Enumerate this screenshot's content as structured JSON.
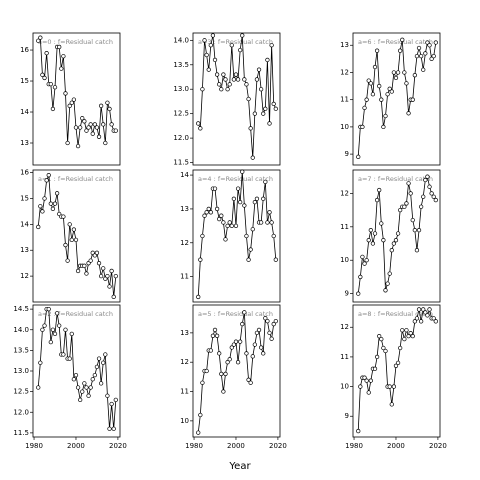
{
  "xlabel": "Year",
  "chart_data": [
    {
      "type": "line",
      "title": "a=0 : f=Residual catch",
      "color": "#000000",
      "x": [
        1982,
        1983,
        1984,
        1985,
        1986,
        1987,
        1988,
        1989,
        1990,
        1991,
        1992,
        1993,
        1994,
        1995,
        1996,
        1997,
        1998,
        1999,
        2000,
        2001,
        2002,
        2003,
        2004,
        2005,
        2006,
        2007,
        2008,
        2009,
        2010,
        2011,
        2012,
        2013,
        2014,
        2015,
        2016,
        2017,
        2018,
        2019
      ],
      "values": [
        16.3,
        16.4,
        15.2,
        15.1,
        15.9,
        14.9,
        14.9,
        14.1,
        14.8,
        16.1,
        16.1,
        15.4,
        15.8,
        14.6,
        13.0,
        14.2,
        14.3,
        14.4,
        13.5,
        12.9,
        13.5,
        13.8,
        13.7,
        13.4,
        13.5,
        13.6,
        13.3,
        13.6,
        13.5,
        13.2,
        14.2,
        13.6,
        13.0,
        14.3,
        14.1,
        13.6,
        13.4,
        13.4
      ],
      "xlim": [
        1979.5,
        2021
      ],
      "ylim": [
        12.29,
        16.55
      ],
      "yticks": [
        13,
        14,
        15,
        16
      ]
    },
    {
      "type": "line",
      "title": "a=1 : f=Residual catch",
      "color": "#000000",
      "x": [
        1982,
        1983,
        1984,
        1985,
        1986,
        1987,
        1988,
        1989,
        1990,
        1991,
        1992,
        1993,
        1994,
        1995,
        1996,
        1997,
        1998,
        1999,
        2000,
        2001,
        2002,
        2003,
        2004,
        2005,
        2006,
        2007,
        2008,
        2009,
        2010,
        2011,
        2012,
        2013,
        2014,
        2015,
        2016,
        2017,
        2018,
        2019
      ],
      "values": [
        13.9,
        14.7,
        14.5,
        15.0,
        15.7,
        15.9,
        14.8,
        14.6,
        14.8,
        15.2,
        14.4,
        14.3,
        14.3,
        13.2,
        12.6,
        14.0,
        13.4,
        13.8,
        13.4,
        12.2,
        12.4,
        12.4,
        12.4,
        12.1,
        12.5,
        12.6,
        12.9,
        12.8,
        12.9,
        12.5,
        12.0,
        12.3,
        11.9,
        12.0,
        11.6,
        12.2,
        11.2,
        12.0
      ],
      "xlim": [
        1979.5,
        2021
      ],
      "ylim": [
        11.0,
        16.1
      ],
      "yticks": [
        12,
        13,
        14,
        15,
        16
      ]
    },
    {
      "type": "line",
      "title": "a=2 : f=Residual catch",
      "color": "#000000",
      "x": [
        1982,
        1983,
        1984,
        1985,
        1986,
        1987,
        1988,
        1989,
        1990,
        1991,
        1992,
        1993,
        1994,
        1995,
        1996,
        1997,
        1998,
        1999,
        2000,
        2001,
        2002,
        2003,
        2004,
        2005,
        2006,
        2007,
        2008,
        2009,
        2010,
        2011,
        2012,
        2013,
        2014,
        2015,
        2016,
        2017,
        2018,
        2019
      ],
      "values": [
        12.6,
        13.2,
        14.0,
        14.1,
        14.5,
        14.5,
        13.7,
        14.0,
        13.9,
        14.4,
        14.1,
        13.4,
        13.4,
        14.0,
        13.3,
        13.3,
        13.9,
        12.8,
        12.9,
        12.6,
        12.3,
        12.5,
        12.7,
        12.6,
        12.4,
        12.6,
        12.8,
        12.9,
        13.1,
        13.3,
        12.7,
        13.2,
        13.4,
        12.4,
        11.6,
        12.2,
        11.6,
        12.3
      ],
      "xlim": [
        1979.5,
        2021
      ],
      "ylim": [
        11.4,
        14.6
      ],
      "xticks": [
        1980,
        2000,
        2020
      ],
      "yticks": [
        11.5,
        {
          "value": 12.0,
          "label": "12.0"
        },
        12.5,
        {
          "value": 13.0,
          "label": "13.0"
        },
        13.5,
        {
          "value": 14.0,
          "label": "14.0"
        },
        14.5
      ]
    },
    {
      "type": "line",
      "title": "a=3 : f=Residual catch",
      "color": "#000000",
      "x": [
        1982,
        1983,
        1984,
        1985,
        1986,
        1987,
        1988,
        1989,
        1990,
        1991,
        1992,
        1993,
        1994,
        1995,
        1996,
        1997,
        1998,
        1999,
        2000,
        2001,
        2002,
        2003,
        2004,
        2005,
        2006,
        2007,
        2008,
        2009,
        2010,
        2011,
        2012,
        2013,
        2014,
        2015,
        2016,
        2017,
        2018,
        2019
      ],
      "values": [
        12.3,
        12.2,
        13.0,
        14.0,
        13.7,
        13.4,
        13.9,
        14.1,
        13.6,
        13.3,
        13.1,
        13.0,
        13.3,
        13.2,
        13.0,
        13.1,
        13.9,
        13.2,
        13.3,
        13.2,
        13.8,
        14.1,
        13.2,
        13.1,
        12.8,
        12.2,
        11.6,
        12.5,
        13.2,
        13.4,
        13.0,
        12.5,
        12.6,
        13.6,
        12.3,
        13.9,
        12.7,
        12.6
      ],
      "xlim": [
        1979.5,
        2021
      ],
      "ylim": [
        11.45,
        14.15
      ],
      "yticks": [
        11.5,
        {
          "value": 12.0,
          "label": "12.0"
        },
        12.5,
        {
          "value": 13.0,
          "label": "13.0"
        },
        13.5,
        {
          "value": 14.0,
          "label": "14.0"
        }
      ]
    },
    {
      "type": "line",
      "title": "a=4 : f=Residual catch",
      "color": "#000000",
      "x": [
        1982,
        1983,
        1984,
        1985,
        1986,
        1987,
        1988,
        1989,
        1990,
        1991,
        1992,
        1993,
        1994,
        1995,
        1996,
        1997,
        1998,
        1999,
        2000,
        2001,
        2002,
        2003,
        2004,
        2005,
        2006,
        2007,
        2008,
        2009,
        2010,
        2011,
        2012,
        2013,
        2014,
        2015,
        2016,
        2017,
        2018,
        2019
      ],
      "values": [
        10.4,
        11.5,
        12.2,
        12.8,
        12.9,
        13.0,
        12.9,
        13.6,
        13.6,
        13.0,
        12.7,
        12.8,
        12.6,
        12.1,
        12.5,
        12.6,
        12.5,
        13.3,
        12.5,
        13.6,
        13.2,
        14.1,
        13.1,
        12.2,
        11.5,
        11.8,
        12.4,
        13.2,
        13.3,
        12.6,
        12.6,
        13.3,
        13.8,
        12.6,
        12.9,
        12.6,
        12.2,
        11.5
      ],
      "xlim": [
        1979.5,
        2021
      ],
      "ylim": [
        10.25,
        14.15
      ],
      "yticks": [
        11,
        12,
        13,
        14
      ]
    },
    {
      "type": "line",
      "title": "a=5 : f=Residual catch",
      "color": "#000000",
      "x": [
        1982,
        1983,
        1984,
        1985,
        1986,
        1987,
        1988,
        1989,
        1990,
        1991,
        1992,
        1993,
        1994,
        1995,
        1996,
        1997,
        1998,
        1999,
        2000,
        2001,
        2002,
        2003,
        2004,
        2005,
        2006,
        2007,
        2008,
        2009,
        2010,
        2011,
        2012,
        2013,
        2014,
        2015,
        2016,
        2017,
        2018,
        2019
      ],
      "values": [
        9.6,
        10.2,
        11.3,
        11.7,
        11.7,
        12.4,
        12.4,
        12.9,
        13.1,
        12.9,
        12.3,
        11.6,
        11.0,
        11.6,
        12.0,
        12.1,
        12.5,
        12.6,
        12.7,
        12.0,
        12.7,
        13.3,
        13.7,
        12.3,
        11.4,
        11.3,
        12.2,
        12.6,
        13.0,
        13.1,
        12.5,
        12.3,
        13.5,
        13.4,
        13.0,
        12.8,
        13.3,
        13.4
      ],
      "xlim": [
        1979.5,
        2021
      ],
      "ylim": [
        9.45,
        13.95
      ],
      "xticks": [
        1980,
        2000,
        2020
      ],
      "yticks": [
        10,
        11,
        12,
        13
      ]
    },
    {
      "type": "line",
      "title": "a=6 : f=Residual catch",
      "color": "#000000",
      "x": [
        1982,
        1983,
        1984,
        1985,
        1986,
        1987,
        1988,
        1989,
        1990,
        1991,
        1992,
        1993,
        1994,
        1995,
        1996,
        1997,
        1998,
        1999,
        2000,
        2001,
        2002,
        2003,
        2004,
        2005,
        2006,
        2007,
        2008,
        2009,
        2010,
        2011,
        2012,
        2013,
        2014,
        2015,
        2016,
        2017,
        2018,
        2019
      ],
      "values": [
        8.9,
        10.0,
        10.0,
        10.7,
        11.0,
        11.7,
        11.6,
        11.2,
        12.2,
        12.8,
        11.5,
        11.0,
        10.0,
        10.4,
        11.2,
        11.4,
        11.3,
        12.0,
        11.8,
        12.0,
        12.8,
        13.2,
        12.0,
        11.6,
        10.5,
        11.0,
        11.0,
        11.9,
        12.6,
        12.9,
        12.6,
        12.1,
        12.7,
        13.1,
        13.0,
        12.5,
        12.6,
        13.1
      ],
      "xlim": [
        1979.5,
        2021
      ],
      "ylim": [
        8.6,
        13.45
      ],
      "yticks": [
        9,
        10,
        11,
        12,
        13
      ]
    },
    {
      "type": "line",
      "title": "a=7 : f=Residual catch",
      "color": "#000000",
      "x": [
        1982,
        1983,
        1984,
        1985,
        1986,
        1987,
        1988,
        1989,
        1990,
        1991,
        1992,
        1993,
        1994,
        1995,
        1996,
        1997,
        1998,
        1999,
        2000,
        2001,
        2002,
        2003,
        2004,
        2005,
        2006,
        2007,
        2008,
        2009,
        2010,
        2011,
        2012,
        2013,
        2014,
        2015,
        2016,
        2017,
        2018,
        2019
      ],
      "values": [
        9.0,
        9.5,
        10.1,
        9.9,
        10.0,
        10.6,
        10.9,
        10.5,
        10.8,
        11.8,
        12.1,
        11.1,
        10.6,
        9.1,
        9.3,
        9.6,
        10.3,
        10.5,
        10.6,
        10.8,
        11.5,
        11.6,
        11.6,
        11.7,
        12.3,
        12.0,
        11.2,
        10.9,
        10.3,
        10.9,
        11.6,
        11.9,
        12.4,
        12.5,
        12.2,
        12.0,
        11.9,
        11.8
      ],
      "xlim": [
        1979.5,
        2021
      ],
      "ylim": [
        8.75,
        12.7
      ],
      "yticks": [
        9,
        10,
        11,
        12
      ]
    },
    {
      "type": "line",
      "title": "a=8 : f=Residual catch",
      "color": "#000000",
      "x": [
        1982,
        1983,
        1984,
        1985,
        1986,
        1987,
        1988,
        1989,
        1990,
        1991,
        1992,
        1993,
        1994,
        1995,
        1996,
        1997,
        1998,
        1999,
        2000,
        2001,
        2002,
        2003,
        2004,
        2005,
        2006,
        2007,
        2008,
        2009,
        2010,
        2011,
        2012,
        2013,
        2014,
        2015,
        2016,
        2017,
        2018,
        2019
      ],
      "values": [
        8.5,
        10.0,
        10.3,
        10.3,
        10.2,
        9.8,
        10.2,
        10.6,
        10.6,
        11.0,
        11.7,
        11.6,
        11.3,
        11.2,
        10.0,
        10.0,
        9.4,
        10.0,
        10.7,
        10.8,
        11.3,
        11.9,
        11.6,
        11.9,
        11.7,
        11.8,
        11.7,
        12.2,
        12.3,
        12.6,
        12.2,
        12.6,
        12.5,
        12.4,
        12.6,
        12.3,
        12.3,
        12.2
      ],
      "xlim": [
        1979.5,
        2021
      ],
      "ylim": [
        8.3,
        12.75
      ],
      "xticks": [
        1980,
        2000,
        2020
      ],
      "yticks": [
        9,
        10,
        11,
        12
      ]
    }
  ]
}
